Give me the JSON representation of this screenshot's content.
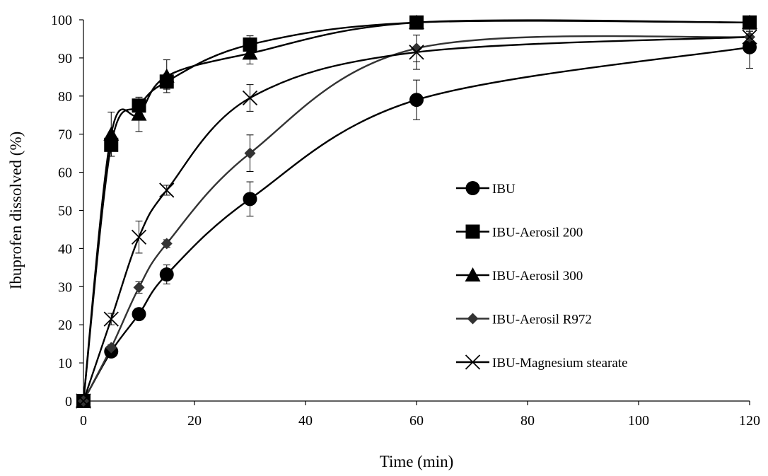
{
  "chart_data": {
    "type": "line",
    "title": "",
    "xlabel": "Time (min)",
    "ylabel": "Ibuprofen dissolved (%)",
    "xlim": [
      0,
      120
    ],
    "ylim": [
      0,
      100
    ],
    "xticks": [
      0,
      20,
      40,
      60,
      80,
      100,
      120
    ],
    "yticks": [
      0,
      10,
      20,
      30,
      40,
      50,
      60,
      70,
      80,
      90,
      100
    ],
    "grid": false,
    "legend_position": "right",
    "x": [
      0,
      5,
      10,
      15,
      30,
      60,
      120
    ],
    "series": [
      {
        "name": "IBU",
        "marker": "circle",
        "color": "#000000",
        "values": [
          0,
          13,
          22.8,
          33.2,
          53,
          79,
          92.8
        ],
        "errors": [
          0,
          1.2,
          1.5,
          2.5,
          4.5,
          5.2,
          5.5
        ]
      },
      {
        "name": "IBU-Aerosil 200",
        "marker": "square",
        "color": "#000000",
        "values": [
          0,
          67.2,
          77.5,
          83.8,
          93.5,
          99.3,
          99.3
        ],
        "errors": [
          0,
          3,
          2.2,
          2,
          2.3,
          0.8,
          0.8
        ]
      },
      {
        "name": "IBU-Aerosil 300",
        "marker": "triangle",
        "color": "#000000",
        "values": [
          0,
          70,
          75.2,
          85.2,
          91.2,
          99.3,
          99.3
        ],
        "errors": [
          0,
          5.8,
          4.5,
          4.3,
          2.8,
          0.8,
          0.8
        ]
      },
      {
        "name": "IBU-Aerosil R972",
        "marker": "diamond",
        "color": "#333333",
        "values": [
          0,
          14,
          29.8,
          41.3,
          65,
          92.5,
          95.5
        ],
        "errors": [
          0,
          0.8,
          1.5,
          1,
          4.8,
          3.5,
          1.5
        ]
      },
      {
        "name": "IBU-Magnesium stearate",
        "marker": "x",
        "color": "#000000",
        "values": [
          0,
          21.5,
          43,
          55.3,
          79.5,
          91.5,
          95.5
        ],
        "errors": [
          0,
          1.5,
          4.2,
          1.3,
          3.5,
          4.5,
          1.5
        ]
      }
    ]
  }
}
